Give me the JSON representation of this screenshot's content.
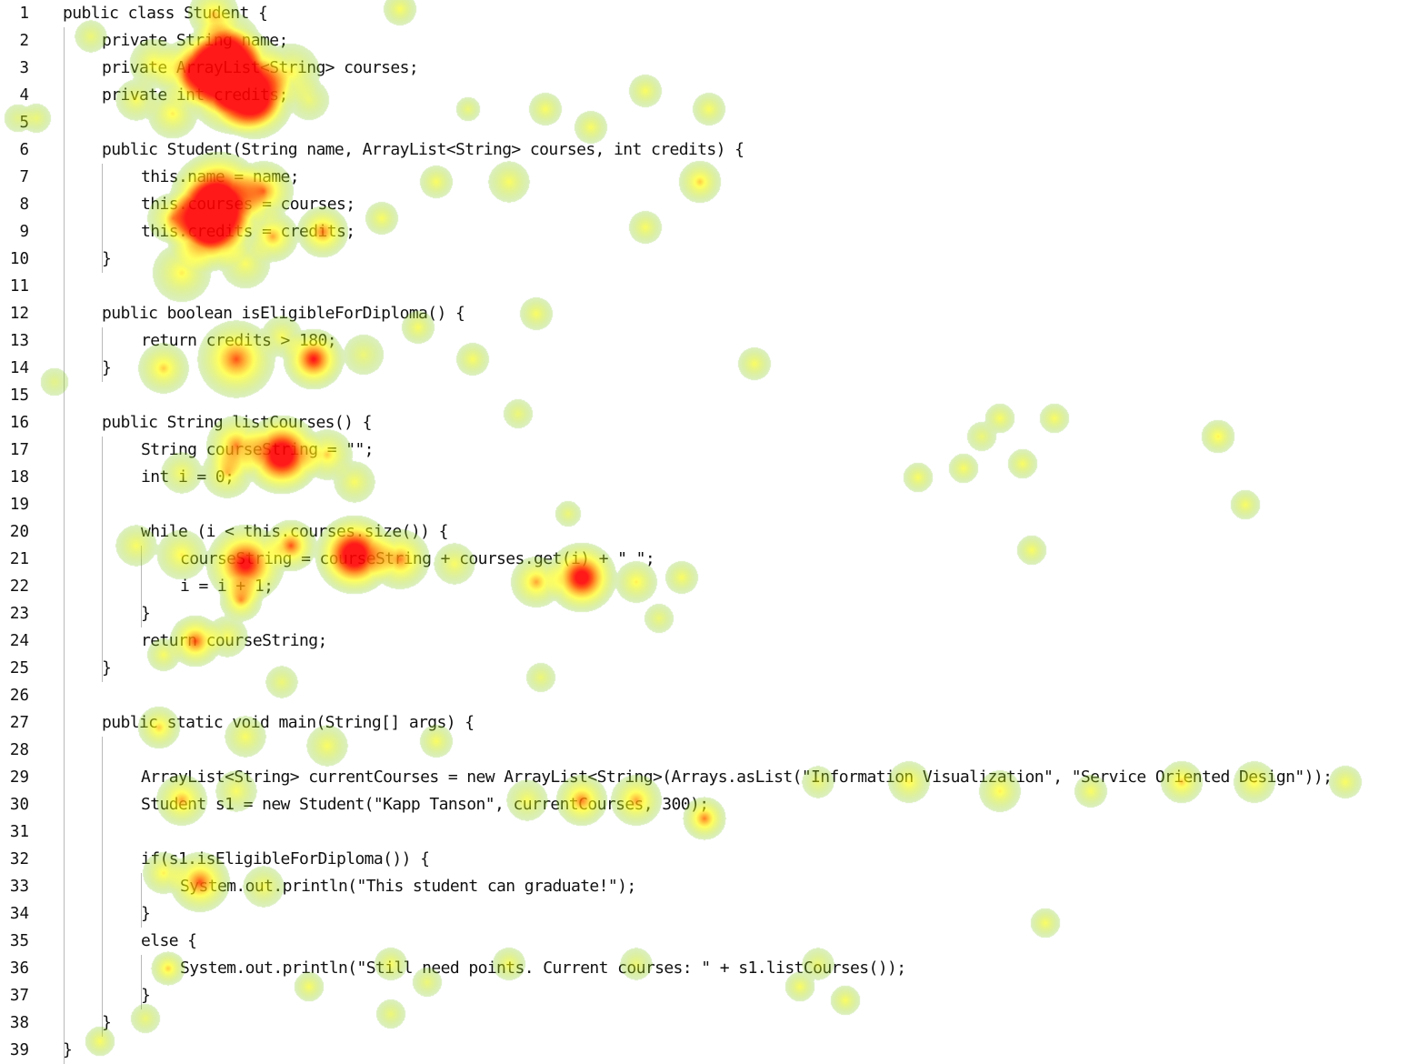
{
  "editor": {
    "language": "java",
    "lines": [
      {
        "n": "1",
        "text": "public class Student {",
        "indent": 0
      },
      {
        "n": "2",
        "text": "private String name;",
        "indent": 1
      },
      {
        "n": "3",
        "text": "private ArrayList<String> courses;",
        "indent": 1
      },
      {
        "n": "4",
        "text": "private int credits;",
        "indent": 1
      },
      {
        "n": "5",
        "text": "",
        "indent": 1
      },
      {
        "n": "6",
        "text": "public Student(String name, ArrayList<String> courses, int credits) {",
        "indent": 1
      },
      {
        "n": "7",
        "text": "this.name = name;",
        "indent": 2
      },
      {
        "n": "8",
        "text": "this.courses = courses;",
        "indent": 2
      },
      {
        "n": "9",
        "text": "this.credits = credits;",
        "indent": 2
      },
      {
        "n": "10",
        "text": "}",
        "indent": 1
      },
      {
        "n": "11",
        "text": "",
        "indent": 1
      },
      {
        "n": "12",
        "text": "public boolean isEligibleForDiploma() {",
        "indent": 1
      },
      {
        "n": "13",
        "text": "return credits > 180;",
        "indent": 2
      },
      {
        "n": "14",
        "text": "}",
        "indent": 1
      },
      {
        "n": "15",
        "text": "",
        "indent": 1
      },
      {
        "n": "16",
        "text": "public String listCourses() {",
        "indent": 1
      },
      {
        "n": "17",
        "text": "String courseString = \"\";",
        "indent": 2
      },
      {
        "n": "18",
        "text": "int i = 0;",
        "indent": 2
      },
      {
        "n": "19",
        "text": "",
        "indent": 2
      },
      {
        "n": "20",
        "text": "while (i < this.courses.size()) {",
        "indent": 2
      },
      {
        "n": "21",
        "text": "courseString = courseString + courses.get(i) + \" \";",
        "indent": 3
      },
      {
        "n": "22",
        "text": "i = i + 1;",
        "indent": 3
      },
      {
        "n": "23",
        "text": "}",
        "indent": 2
      },
      {
        "n": "24",
        "text": "return courseString;",
        "indent": 2
      },
      {
        "n": "25",
        "text": "}",
        "indent": 1
      },
      {
        "n": "26",
        "text": "",
        "indent": 1
      },
      {
        "n": "27",
        "text": "public static void main(String[] args) {",
        "indent": 1
      },
      {
        "n": "28",
        "text": "",
        "indent": 2
      },
      {
        "n": "29",
        "text": "ArrayList<String> currentCourses = new ArrayList<String>(Arrays.asList(\"Information Visualization\", \"Service Oriented Design\"));",
        "indent": 2
      },
      {
        "n": "30",
        "text": "Student s1 = new Student(\"Kapp Tanson\", currentCourses, 300);",
        "indent": 2
      },
      {
        "n": "31",
        "text": "",
        "indent": 2
      },
      {
        "n": "32",
        "text": "if(s1.isEligibleForDiploma()) {",
        "indent": 2
      },
      {
        "n": "33",
        "text": "System.out.println(\"This student can graduate!\");",
        "indent": 3
      },
      {
        "n": "34",
        "text": "}",
        "indent": 2
      },
      {
        "n": "35",
        "text": "else {",
        "indent": 2
      },
      {
        "n": "36",
        "text": "System.out.println(\"Still need points. Current courses: \" + s1.listCourses());",
        "indent": 3
      },
      {
        "n": "37",
        "text": "}",
        "indent": 2
      },
      {
        "n": "38",
        "text": "}",
        "indent": 1
      },
      {
        "n": "39",
        "text": "}",
        "indent": 0
      }
    ]
  },
  "heatmap": {
    "colors": {
      "low": "#6dc020",
      "mid": "#ffff00",
      "high": "#ff0000"
    }
  }
}
